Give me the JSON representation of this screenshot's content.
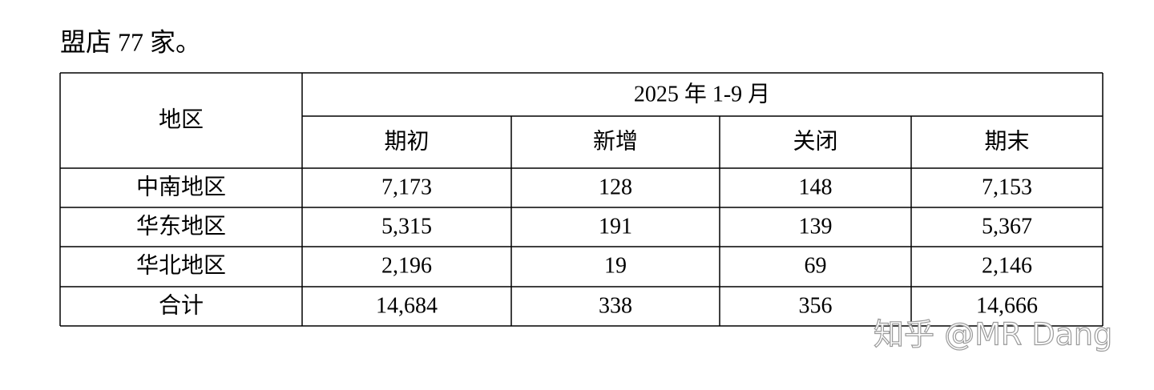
{
  "intro": "盟店 77 家。",
  "table": {
    "region_header": "地区",
    "period_header": "2025 年 1-9 月",
    "columns": [
      "期初",
      "新增",
      "关闭",
      "期末"
    ],
    "rows": [
      [
        "中南地区",
        "7,173",
        "128",
        "148",
        "7,153"
      ],
      [
        "华东地区",
        "5,315",
        "191",
        "139",
        "5,367"
      ],
      [
        "华北地区",
        "2,196",
        "19",
        "69",
        "2,146"
      ],
      [
        "合计",
        "14,684",
        "338",
        "356",
        "14,666"
      ]
    ]
  },
  "watermark": "知乎 @MR Dang"
}
